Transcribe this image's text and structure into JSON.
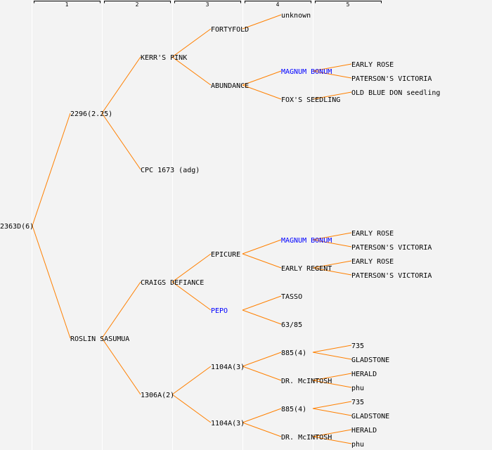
{
  "header": {
    "generations": [
      "1",
      "2",
      "3",
      "4",
      "5"
    ]
  },
  "colors": {
    "background": "#f3f3f3",
    "edge": "#ff8000",
    "highlight": "#0000ff",
    "text": "#000000",
    "separator": "#ffffff"
  },
  "tree": {
    "label": "2363D(6)",
    "children": [
      {
        "label": "2296(2.25)",
        "children": [
          {
            "label": "KERR'S PINK",
            "children": [
              {
                "label": "FORTYFOLD",
                "children": [
                  {
                    "label": "unknown"
                  }
                ]
              },
              {
                "label": "ABUNDANCE",
                "children": [
                  {
                    "label": "MAGNUM BONUM",
                    "highlight": true,
                    "children": [
                      {
                        "label": "EARLY ROSE"
                      },
                      {
                        "label": "PATERSON'S VICTORIA"
                      }
                    ]
                  },
                  {
                    "label": "FOX'S SEEDLING",
                    "children": [
                      {
                        "label": "OLD BLUE DON seedling"
                      }
                    ]
                  }
                ]
              }
            ]
          },
          {
            "label": "CPC 1673 (adg)"
          }
        ]
      },
      {
        "label": "ROSLIN SASUMUA",
        "children": [
          {
            "label": "CRAIGS DEFIANCE",
            "children": [
              {
                "label": "EPICURE",
                "children": [
                  {
                    "label": "MAGNUM BONUM",
                    "highlight": true,
                    "children": [
                      {
                        "label": "EARLY ROSE"
                      },
                      {
                        "label": "PATERSON'S VICTORIA"
                      }
                    ]
                  },
                  {
                    "label": "EARLY REGENT",
                    "children": [
                      {
                        "label": "EARLY ROSE"
                      },
                      {
                        "label": "PATERSON'S VICTORIA"
                      }
                    ]
                  }
                ]
              },
              {
                "label": "PEPO",
                "highlight": true,
                "children": [
                  {
                    "label": "TASSO"
                  },
                  {
                    "label": "63/85"
                  }
                ]
              }
            ]
          },
          {
            "label": "1306A(2)",
            "children": [
              {
                "label": "1104A(3)",
                "children": [
                  {
                    "label": "885(4)",
                    "children": [
                      {
                        "label": "735"
                      },
                      {
                        "label": "GLADSTONE"
                      }
                    ]
                  },
                  {
                    "label": "DR. McINTOSH",
                    "children": [
                      {
                        "label": "HERALD"
                      },
                      {
                        "label": "phu"
                      }
                    ]
                  }
                ]
              },
              {
                "label": "1104A(3)",
                "children": [
                  {
                    "label": "885(4)",
                    "children": [
                      {
                        "label": "735"
                      },
                      {
                        "label": "GLADSTONE"
                      }
                    ]
                  },
                  {
                    "label": "DR. McINTOSH",
                    "children": [
                      {
                        "label": "HERALD"
                      },
                      {
                        "label": "phu"
                      }
                    ]
                  }
                ]
              }
            ]
          }
        ]
      }
    ]
  }
}
